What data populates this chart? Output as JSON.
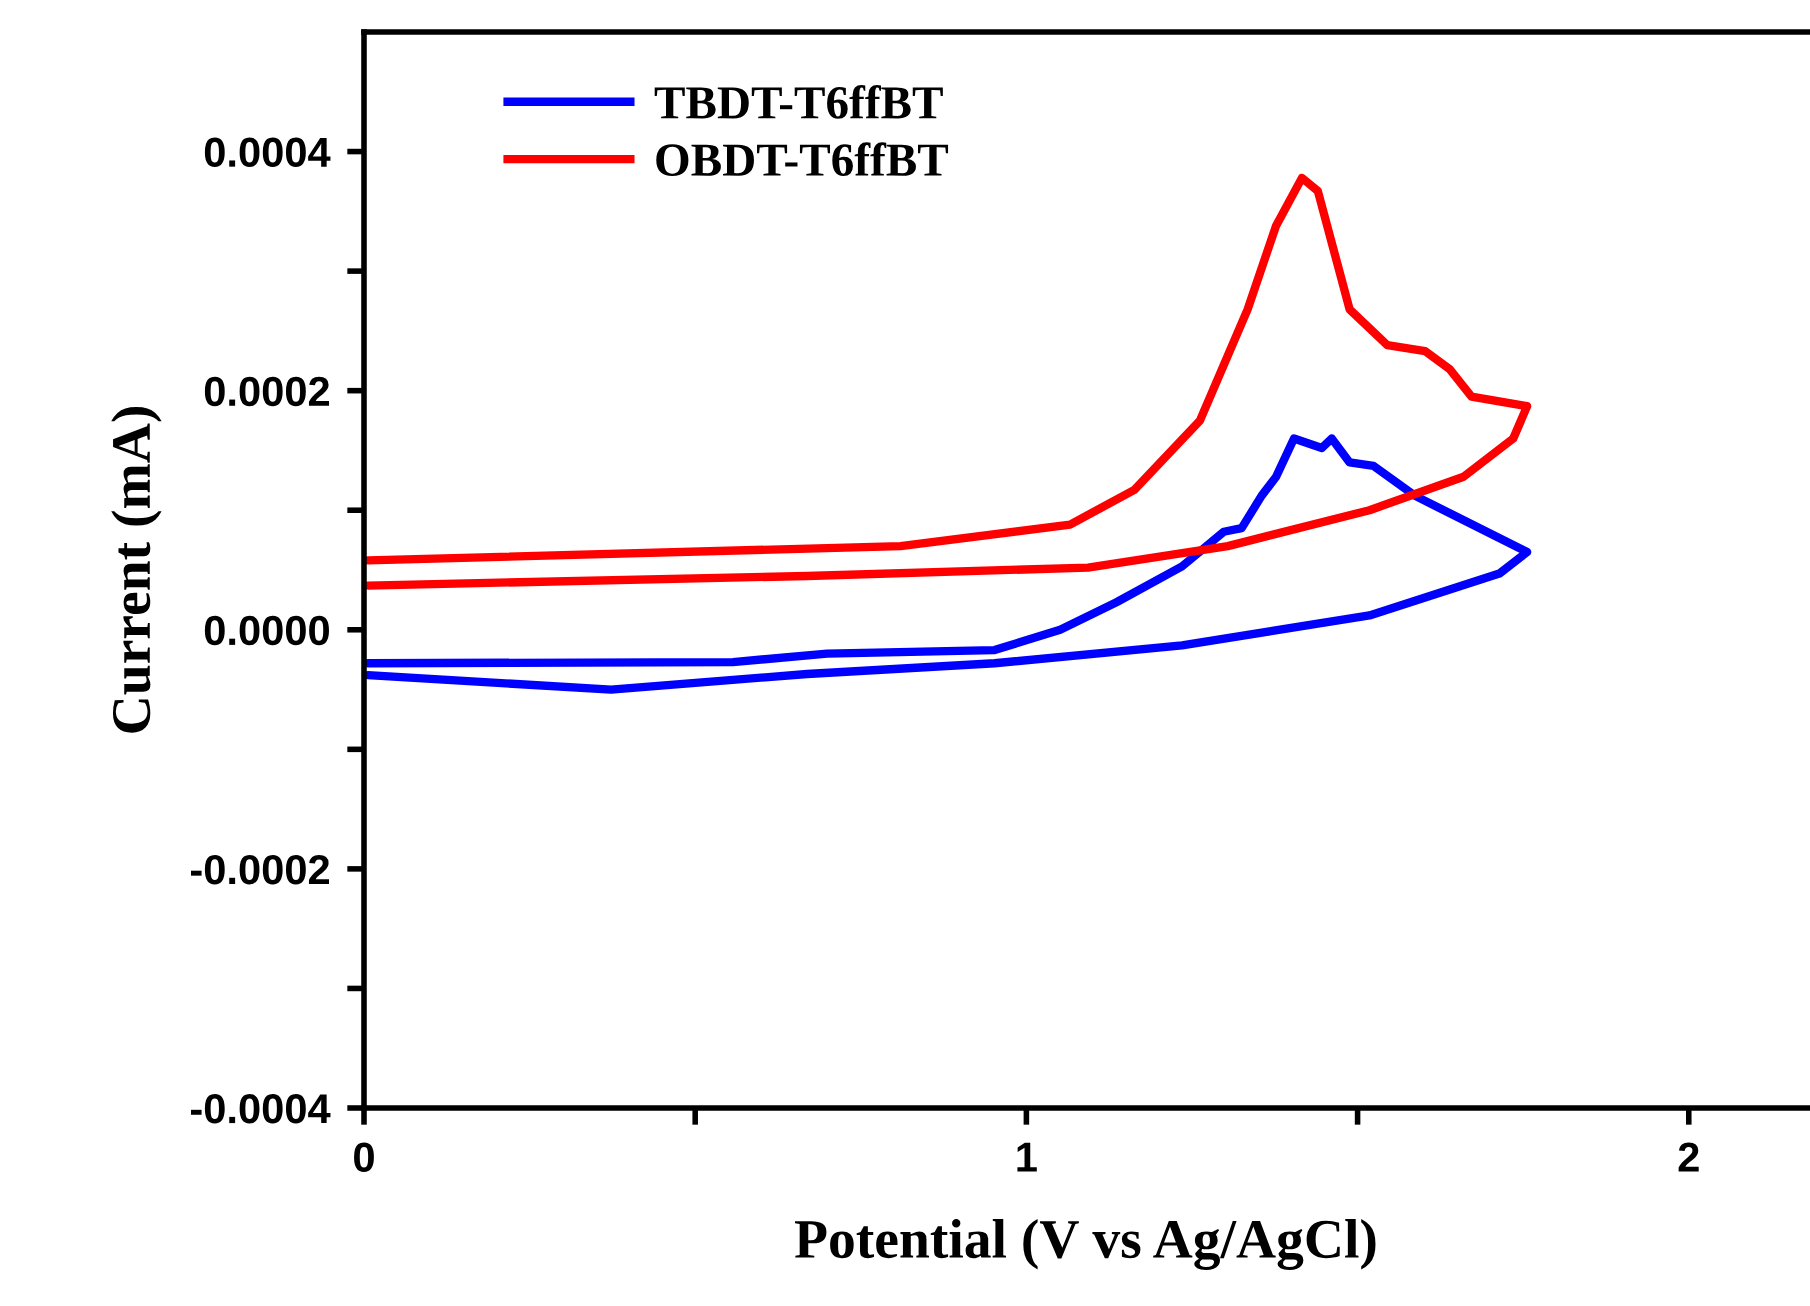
{
  "chart_data": {
    "type": "line",
    "xlabel": "Potential (V vs Ag/AgCl)",
    "ylabel": "Current (mA)",
    "xlim": [
      0,
      2.18
    ],
    "ylim": [
      -0.0004,
      0.0005
    ],
    "xticks": [
      0,
      {
        "value": 0.5,
        "label": null
      },
      1,
      {
        "value": 1.5,
        "label": null
      },
      2
    ],
    "yticks": [
      {
        "value": -0.0004,
        "label": "-0.0004"
      },
      {
        "value": -0.0003,
        "label": null
      },
      {
        "value": -0.0002,
        "label": "-0.0002"
      },
      {
        "value": -0.0001,
        "label": null
      },
      {
        "value": 0,
        "label": "0.0000"
      },
      {
        "value": 0.0001,
        "label": null
      },
      {
        "value": 0.0002,
        "label": "0.0002"
      },
      {
        "value": 0.0003,
        "label": null
      },
      {
        "value": 0.0004,
        "label": "0.0004"
      }
    ],
    "legend": "top left",
    "grid": false,
    "marker": "none",
    "line_style": "solid",
    "series": [
      {
        "name": "TBDT-T6ffBT",
        "color": "#0000ff",
        "x": [
          0.006,
          0.557,
          0.699,
          0.952,
          1.051,
          1.136,
          1.235,
          1.298,
          1.325,
          1.355,
          1.377,
          1.404,
          1.446,
          1.461,
          1.488,
          1.524,
          1.587,
          1.756,
          1.714,
          1.518,
          1.235,
          0.952,
          0.669,
          0.373,
          0.006
        ],
        "values": [
          -2.8e-05,
          -2.7e-05,
          -2e-05,
          -1.7e-05,
          0.0,
          2.3e-05,
          5.3e-05,
          8.2e-05,
          8.5e-05,
          0.000112,
          0.000128,
          0.00016,
          0.000152,
          0.00016,
          0.00014,
          0.000137,
          0.000112,
          6.5e-05,
          4.7e-05,
          1.2e-05,
          -1.3e-05,
          -2.8e-05,
          -3.7e-05,
          -5e-05,
          -3.8e-05
        ]
      },
      {
        "name": "OBDT-T6ffBT",
        "color": "#ff0000",
        "x": [
          0.006,
          0.81,
          1.066,
          1.163,
          1.262,
          1.334,
          1.377,
          1.416,
          1.44,
          1.488,
          1.545,
          1.602,
          1.639,
          1.672,
          1.756,
          1.735,
          1.66,
          1.518,
          1.304,
          1.093,
          0.669,
          0.006
        ],
        "values": [
          5.8e-05,
          7e-05,
          8.8e-05,
          0.000117,
          0.000175,
          0.000268,
          0.000338,
          0.000378,
          0.000367,
          0.000268,
          0.000238,
          0.000233,
          0.000218,
          0.000195,
          0.000187,
          0.00016,
          0.000128,
          0.0001,
          7e-05,
          5.2e-05,
          4.5e-05,
          3.7e-05
        ]
      }
    ]
  }
}
